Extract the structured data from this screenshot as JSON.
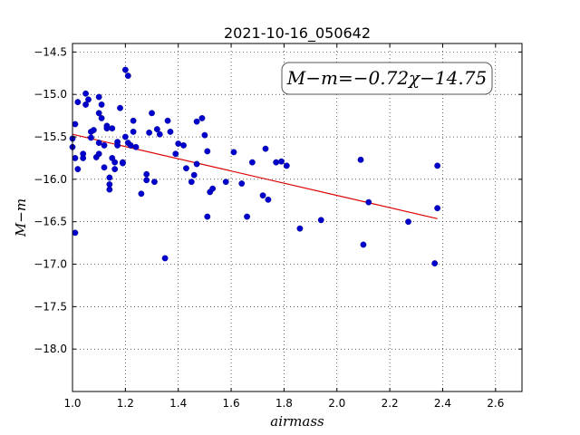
{
  "chart_data": {
    "type": "scatter",
    "title": "2021-10-16_050642",
    "xlabel": "airmass",
    "ylabel": "M−m",
    "xlim": [
      1.0,
      2.7
    ],
    "ylim": [
      -14.4,
      -18.5
    ],
    "y_inverted": true,
    "grid": true,
    "xticks": [
      1.0,
      1.2,
      1.4,
      1.6,
      1.8,
      2.0,
      2.2,
      2.4,
      2.6
    ],
    "xtick_labels": [
      "1.0",
      "1.2",
      "1.4",
      "1.6",
      "1.8",
      "2.0",
      "2.2",
      "2.4",
      "2.6"
    ],
    "yticks": [
      -14.5,
      -15.0,
      -15.5,
      -16.0,
      -16.5,
      -17.0,
      -17.5,
      -18.0
    ],
    "ytick_labels": [
      "−14.5",
      "−15.0",
      "−15.5",
      "−16.0",
      "−16.5",
      "−17.0",
      "−17.5",
      "−18.0"
    ],
    "annotation": "M−m=−0.72χ−14.75",
    "fit": {
      "slope": -0.72,
      "intercept": -14.75,
      "x_range": [
        1.0,
        2.38
      ],
      "color": "#dd0000"
    },
    "point_color": "#0000cc",
    "points": [
      [
        1.0,
        -15.52
      ],
      [
        1.0,
        -15.62
      ],
      [
        1.01,
        -15.35
      ],
      [
        1.01,
        -15.75
      ],
      [
        1.01,
        -16.63
      ],
      [
        1.02,
        -15.09
      ],
      [
        1.02,
        -15.88
      ],
      [
        1.04,
        -15.7
      ],
      [
        1.04,
        -15.75
      ],
      [
        1.05,
        -14.99
      ],
      [
        1.05,
        -15.12
      ],
      [
        1.06,
        -15.06
      ],
      [
        1.07,
        -15.44
      ],
      [
        1.07,
        -15.51
      ],
      [
        1.08,
        -15.42
      ],
      [
        1.09,
        -15.74
      ],
      [
        1.1,
        -15.7
      ],
      [
        1.1,
        -15.57
      ],
      [
        1.1,
        -15.22
      ],
      [
        1.1,
        -15.03
      ],
      [
        1.11,
        -15.12
      ],
      [
        1.11,
        -15.28
      ],
      [
        1.12,
        -15.86
      ],
      [
        1.12,
        -15.6
      ],
      [
        1.13,
        -15.37
      ],
      [
        1.13,
        -15.4
      ],
      [
        1.14,
        -15.98
      ],
      [
        1.14,
        -16.06
      ],
      [
        1.14,
        -16.12
      ],
      [
        1.15,
        -15.4
      ],
      [
        1.15,
        -15.75
      ],
      [
        1.16,
        -15.8
      ],
      [
        1.16,
        -15.88
      ],
      [
        1.17,
        -15.56
      ],
      [
        1.17,
        -15.6
      ],
      [
        1.18,
        -15.16
      ],
      [
        1.19,
        -15.8
      ],
      [
        1.19,
        -15.81
      ],
      [
        1.2,
        -15.5
      ],
      [
        1.2,
        -14.71
      ],
      [
        1.21,
        -14.78
      ],
      [
        1.21,
        -15.57
      ],
      [
        1.22,
        -15.6
      ],
      [
        1.23,
        -15.44
      ],
      [
        1.23,
        -15.31
      ],
      [
        1.24,
        -15.62
      ],
      [
        1.26,
        -16.17
      ],
      [
        1.28,
        -15.94
      ],
      [
        1.28,
        -16.01
      ],
      [
        1.29,
        -15.45
      ],
      [
        1.3,
        -15.22
      ],
      [
        1.31,
        -16.03
      ],
      [
        1.32,
        -15.41
      ],
      [
        1.33,
        -15.47
      ],
      [
        1.35,
        -16.93
      ],
      [
        1.36,
        -15.31
      ],
      [
        1.37,
        -15.44
      ],
      [
        1.39,
        -15.7
      ],
      [
        1.4,
        -15.58
      ],
      [
        1.42,
        -15.6
      ],
      [
        1.43,
        -15.87
      ],
      [
        1.45,
        -16.03
      ],
      [
        1.46,
        -15.95
      ],
      [
        1.47,
        -15.32
      ],
      [
        1.47,
        -15.82
      ],
      [
        1.49,
        -15.28
      ],
      [
        1.5,
        -15.48
      ],
      [
        1.51,
        -16.44
      ],
      [
        1.51,
        -15.67
      ],
      [
        1.52,
        -16.15
      ],
      [
        1.53,
        -16.11
      ],
      [
        1.58,
        -16.03
      ],
      [
        1.61,
        -15.68
      ],
      [
        1.64,
        -16.05
      ],
      [
        1.66,
        -16.44
      ],
      [
        1.68,
        -15.8
      ],
      [
        1.72,
        -16.19
      ],
      [
        1.73,
        -15.64
      ],
      [
        1.74,
        -16.24
      ],
      [
        1.77,
        -15.8
      ],
      [
        1.79,
        -15.79
      ],
      [
        1.81,
        -15.84
      ],
      [
        1.86,
        -16.58
      ],
      [
        1.94,
        -16.48
      ],
      [
        2.09,
        -15.77
      ],
      [
        2.1,
        -16.77
      ],
      [
        2.12,
        -16.27
      ],
      [
        2.27,
        -16.5
      ],
      [
        2.37,
        -16.99
      ],
      [
        2.38,
        -15.84
      ],
      [
        2.38,
        -16.34
      ]
    ]
  }
}
